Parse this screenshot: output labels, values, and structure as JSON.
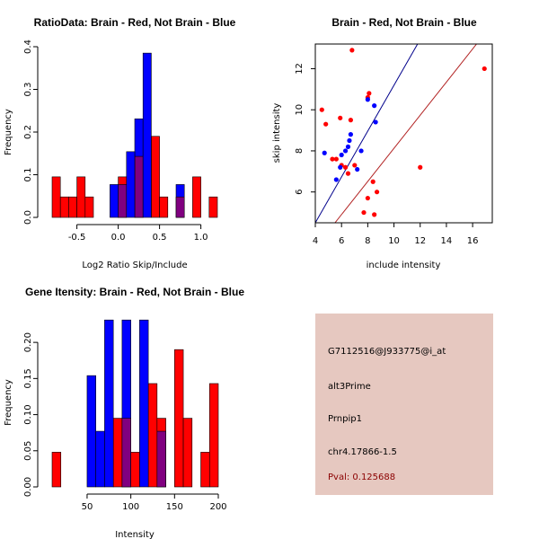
{
  "colors": {
    "red": "#ff0000",
    "blue": "#0000ff",
    "purple": "#800080",
    "panel_bg": "#e6c8c0",
    "dark_red": "#8b0000",
    "line_blue": "#00008b",
    "line_red": "#b22222"
  },
  "chart_data": [
    {
      "type": "bar",
      "title": "RatioData: Brain - Red, Not Brain - Blue",
      "xlabel": "Log2 Ratio Skip/Include",
      "ylabel": "Frequency",
      "xlim": [
        -0.8,
        1.2
      ],
      "ylim": [
        0,
        0.4
      ],
      "xticks": [
        -0.5,
        0.0,
        0.5,
        1.0
      ],
      "xtick_labels": [
        "-0.5",
        "0.0",
        "0.5",
        "1.0"
      ],
      "yticks": [
        0,
        0.1,
        0.2,
        0.3,
        0.4
      ],
      "ytick_labels": [
        "0.0",
        "0.1",
        "0.2",
        "0.3",
        "0.4"
      ],
      "series": [
        {
          "name": "Brain",
          "color": "red",
          "bins": [
            {
              "x0": -0.8,
              "x1": -0.7,
              "value": 0.095
            },
            {
              "x0": -0.7,
              "x1": -0.6,
              "value": 0.048
            },
            {
              "x0": -0.6,
              "x1": -0.5,
              "value": 0.048
            },
            {
              "x0": -0.5,
              "x1": -0.4,
              "value": 0.095
            },
            {
              "x0": -0.4,
              "x1": -0.3,
              "value": 0.048
            },
            {
              "x0": 0.0,
              "x1": 0.1,
              "value": 0.095
            },
            {
              "x0": 0.2,
              "x1": 0.3,
              "value": 0.143
            },
            {
              "x0": 0.4,
              "x1": 0.5,
              "value": 0.19
            },
            {
              "x0": 0.5,
              "x1": 0.6,
              "value": 0.048
            },
            {
              "x0": 0.7,
              "x1": 0.8,
              "value": 0.048
            },
            {
              "x0": 0.9,
              "x1": 1.0,
              "value": 0.095
            },
            {
              "x0": 1.1,
              "x1": 1.2,
              "value": 0.048
            }
          ]
        },
        {
          "name": "Not Brain",
          "color": "blue",
          "bins": [
            {
              "x0": -0.1,
              "x1": 0.0,
              "value": 0.077
            },
            {
              "x0": 0.0,
              "x1": 0.1,
              "value": 0.077
            },
            {
              "x0": 0.1,
              "x1": 0.2,
              "value": 0.154
            },
            {
              "x0": 0.2,
              "x1": 0.3,
              "value": 0.231
            },
            {
              "x0": 0.3,
              "x1": 0.4,
              "value": 0.385
            },
            {
              "x0": 0.7,
              "x1": 0.8,
              "value": 0.077
            }
          ]
        }
      ]
    },
    {
      "type": "scatter",
      "title": "Brain - Red, Not Brain - Blue",
      "xlabel": "include intensity",
      "ylabel": "skip intensity",
      "xlim": [
        4,
        17.5
      ],
      "ylim": [
        4.5,
        13.2
      ],
      "xticks": [
        4,
        6,
        8,
        10,
        12,
        14,
        16
      ],
      "xtick_labels": [
        "4",
        "6",
        "8",
        "10",
        "12",
        "14",
        "16"
      ],
      "yticks": [
        6,
        8,
        10,
        12
      ],
      "ytick_labels": [
        "6",
        "8",
        "10",
        "12"
      ],
      "series": [
        {
          "name": "Brain",
          "color": "red",
          "points": [
            [
              4.5,
              10.0
            ],
            [
              4.8,
              9.3
            ],
            [
              5.3,
              7.6
            ],
            [
              5.6,
              7.6
            ],
            [
              5.9,
              9.6
            ],
            [
              6.0,
              7.3
            ],
            [
              6.3,
              7.2
            ],
            [
              6.5,
              6.9
            ],
            [
              6.7,
              9.5
            ],
            [
              6.8,
              12.9
            ],
            [
              7.0,
              7.3
            ],
            [
              7.7,
              5.0
            ],
            [
              8.0,
              5.7
            ],
            [
              8.0,
              10.6
            ],
            [
              8.1,
              10.8
            ],
            [
              8.4,
              6.5
            ],
            [
              8.5,
              4.9
            ],
            [
              8.7,
              6.0
            ],
            [
              12.0,
              7.2
            ],
            [
              16.9,
              12.0
            ]
          ]
        },
        {
          "name": "Not Brain",
          "color": "blue",
          "points": [
            [
              4.7,
              7.9
            ],
            [
              5.6,
              6.6
            ],
            [
              5.9,
              7.2
            ],
            [
              6.0,
              7.8
            ],
            [
              6.3,
              8.0
            ],
            [
              6.5,
              8.2
            ],
            [
              6.6,
              8.5
            ],
            [
              6.7,
              8.8
            ],
            [
              7.2,
              7.1
            ],
            [
              7.5,
              8.0
            ],
            [
              8.0,
              10.5
            ],
            [
              8.5,
              10.2
            ],
            [
              8.6,
              9.4
            ]
          ]
        }
      ],
      "lines": [
        {
          "name": "Not Brain fit",
          "color": "line_blue",
          "from": [
            4.0,
            4.5
          ],
          "to": [
            11.8,
            13.2
          ]
        },
        {
          "name": "Brain fit",
          "color": "line_red",
          "from": [
            5.5,
            4.5
          ],
          "to": [
            16.3,
            13.2
          ]
        }
      ]
    },
    {
      "type": "bar",
      "title": "Gene Itensity: Brain - Red, Not Brain - Blue",
      "xlabel": "Intensity",
      "ylabel": "Frequency",
      "xlim": [
        10,
        200
      ],
      "ylim": [
        0,
        0.23
      ],
      "xticks": [
        50,
        100,
        150,
        200
      ],
      "xtick_labels": [
        "50",
        "100",
        "150",
        "200"
      ],
      "yticks": [
        0,
        0.05,
        0.1,
        0.15,
        0.2
      ],
      "ytick_labels": [
        "0.00",
        "0.05",
        "0.10",
        "0.15",
        "0.20"
      ],
      "series": [
        {
          "name": "Brain",
          "color": "red",
          "bins": [
            {
              "x0": 10,
              "x1": 20,
              "value": 0.048
            },
            {
              "x0": 80,
              "x1": 90,
              "value": 0.095
            },
            {
              "x0": 90,
              "x1": 100,
              "value": 0.095
            },
            {
              "x0": 100,
              "x1": 110,
              "value": 0.048
            },
            {
              "x0": 120,
              "x1": 130,
              "value": 0.143
            },
            {
              "x0": 130,
              "x1": 140,
              "value": 0.095
            },
            {
              "x0": 150,
              "x1": 160,
              "value": 0.19
            },
            {
              "x0": 160,
              "x1": 170,
              "value": 0.095
            },
            {
              "x0": 180,
              "x1": 190,
              "value": 0.048
            },
            {
              "x0": 190,
              "x1": 200,
              "value": 0.143
            }
          ]
        },
        {
          "name": "Not Brain",
          "color": "blue",
          "bins": [
            {
              "x0": 50,
              "x1": 60,
              "value": 0.154
            },
            {
              "x0": 60,
              "x1": 70,
              "value": 0.077
            },
            {
              "x0": 70,
              "x1": 80,
              "value": 0.231
            },
            {
              "x0": 90,
              "x1": 100,
              "value": 0.231
            },
            {
              "x0": 110,
              "x1": 120,
              "value": 0.231
            },
            {
              "x0": 130,
              "x1": 140,
              "value": 0.077
            }
          ]
        }
      ]
    }
  ],
  "info_panel": {
    "probe_id": "G7112516@J933775@i_at",
    "event_type": "alt3Prime",
    "gene": "Prnpip1",
    "location": "chr4.17866-1.5",
    "pval": "Pval: 0.125688"
  }
}
